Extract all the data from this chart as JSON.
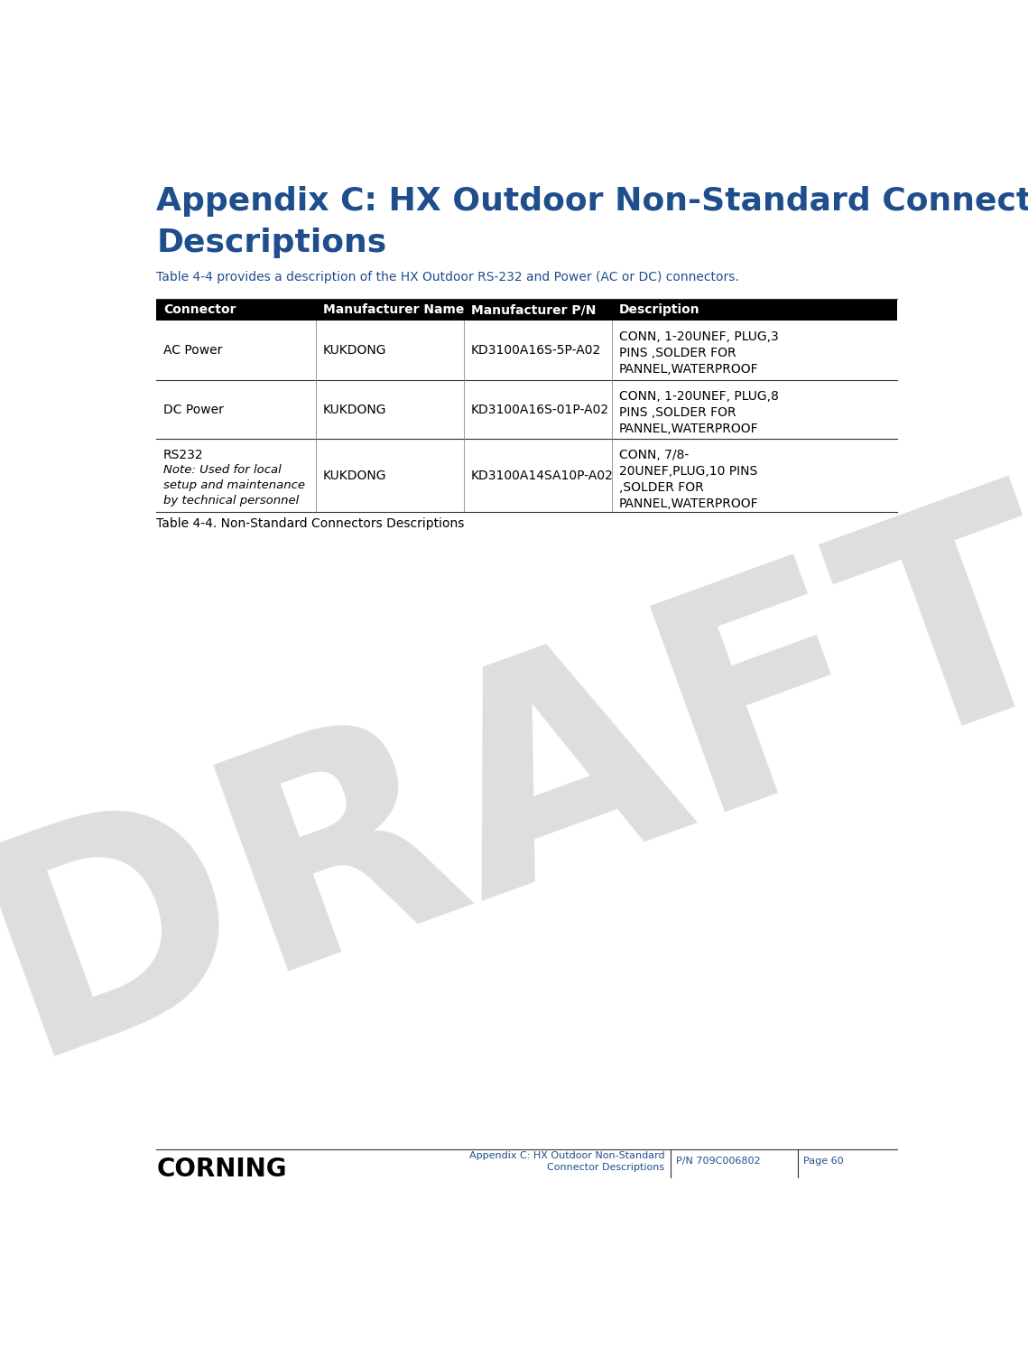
{
  "title_line1": "Appendix C: HX Outdoor Non-Standard Connector",
  "title_line2": "Descriptions",
  "title_color": "#1F4E8C",
  "title_fontsize": 26,
  "intro_text": "Table 4-4 provides a description of the HX Outdoor RS-232 and Power (AC or DC) connectors.",
  "intro_fontsize": 10,
  "intro_color": "#1F4E8C",
  "header_bg": "#000000",
  "header_text_color": "#FFFFFF",
  "header_labels": [
    "Connector",
    "Manufacturer Name",
    "Manufacturer P/N",
    "Description"
  ],
  "header_fontsize": 10,
  "rows": [
    {
      "connector": "AC Power",
      "connector_note": null,
      "manufacturer": "KUKDONG",
      "part_number": "KD3100A16S-5P-A02",
      "description": [
        "CONN, 1-20UNEF, PLUG,3",
        "PINS ,SOLDER FOR",
        "PANNEL,WATERPROOF"
      ]
    },
    {
      "connector": "DC Power",
      "connector_note": null,
      "manufacturer": "KUKDONG",
      "part_number": "KD3100A16S-01P-A02",
      "description": [
        "CONN, 1-20UNEF, PLUG,8",
        "PINS ,SOLDER FOR",
        "PANNEL,WATERPROOF"
      ]
    },
    {
      "connector": "RS232",
      "connector_note": [
        "Note: Used for local",
        "setup and maintenance",
        "by technical personnel"
      ],
      "manufacturer": "KUKDONG",
      "part_number": "KD3100A14SA10P-A02",
      "description": [
        "CONN, 7/8-",
        "20UNEF,PLUG,10 PINS",
        ",SOLDER FOR",
        "PANNEL,WATERPROOF"
      ]
    }
  ],
  "row_bg_colors": [
    "#FFFFFF",
    "#FFFFFF",
    "#FFFFFF"
  ],
  "table_caption": "Table 4-4. Non-Standard Connectors Descriptions",
  "caption_fontsize": 10,
  "caption_color": "#000000",
  "footer_left": "CORNING",
  "footer_center_line1": "Appendix C: HX Outdoor Non-Standard",
  "footer_center_line2": "Connector Descriptions",
  "footer_right1": "P/N 709C006802",
  "footer_right2": "Page 60",
  "footer_color": "#1F4E8C",
  "footer_fontsize": 8,
  "draft_text": "DRAFT",
  "draft_color": "#C8C8C8",
  "draft_alpha": 0.6,
  "bg_color": "#FFFFFF",
  "text_color": "#000000",
  "cell_fontsize": 10
}
